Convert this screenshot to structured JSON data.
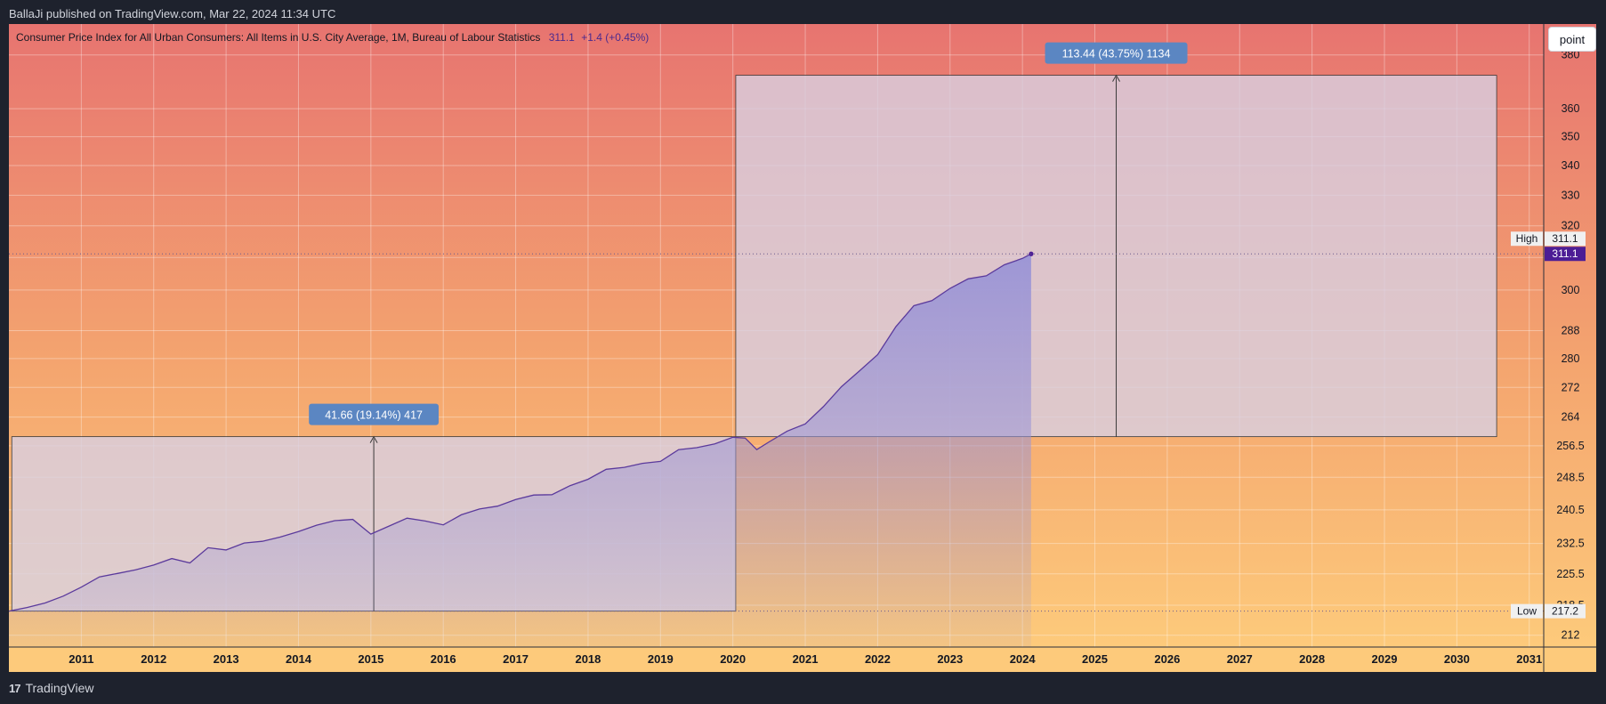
{
  "header": {
    "publisher_line": "BallaJi published on TradingView.com, Mar 22, 2024 11:34 UTC"
  },
  "footer": {
    "brand": "TradingView",
    "logo_glyph": "17"
  },
  "toolbar": {
    "scale_mode_button": "point"
  },
  "legend": {
    "title": "Consumer Price Index for All Urban Consumers: All Items in U.S. City Average, 1M, Bureau of Labour Statistics",
    "last_value": "311.1",
    "change": "+1.4 (+0.45%)"
  },
  "price_labels": {
    "high_label": "High",
    "high_value": "311.1",
    "last_value": "311.1",
    "low_label": "Low",
    "low_value": "217.2"
  },
  "measurements": [
    {
      "label": "41.66 (19.14%) 417",
      "from_date": 2010.04,
      "to_date": 2020.04,
      "low": 217.2,
      "high": 258.86
    },
    {
      "label": "113.44 (43.75%) 1134",
      "from_date": 2020.04,
      "to_date": 2030.55,
      "low": 258.86,
      "high": 372.3
    }
  ],
  "colors": {
    "background_top": "#e77470",
    "background_bottom": "#fdca7b",
    "line": "#5b3a9c",
    "area_fill": "#9a94d6",
    "measure_box": "#d8cfe2",
    "measure_label_bg": "#5b86c2",
    "last_value_bg": "#4c1d95"
  },
  "chart_data": {
    "type": "area",
    "title": "Consumer Price Index for All Urban Consumers: All Items in U.S. City Average, 1M, Bureau of Labour Statistics",
    "x_tick_labels": [
      "2011",
      "2012",
      "2013",
      "2014",
      "2015",
      "2016",
      "2017",
      "2018",
      "2019",
      "2020",
      "2021",
      "2022",
      "2023",
      "2024",
      "2025",
      "2026",
      "2027",
      "2028",
      "2029",
      "2030",
      "2031"
    ],
    "y_tick_labels": [
      "212",
      "218.5",
      "225.5",
      "232.5",
      "240.5",
      "248.5",
      "256.5",
      "264",
      "272",
      "280",
      "288",
      "300",
      "310",
      "320",
      "330",
      "340",
      "350",
      "360",
      "380"
    ],
    "xlim": [
      2010.0,
      2031.2
    ],
    "ylim": [
      209.5,
      392
    ],
    "y_scale": "log",
    "grid": true,
    "series": [
      {
        "name": "",
        "x": [
          2010.0,
          2010.25,
          2010.5,
          2010.75,
          2011.0,
          2011.25,
          2011.5,
          2011.75,
          2012.0,
          2012.25,
          2012.5,
          2012.75,
          2013.0,
          2013.25,
          2013.5,
          2013.75,
          2014.0,
          2014.25,
          2014.5,
          2014.75,
          2015.0,
          2015.25,
          2015.5,
          2015.75,
          2016.0,
          2016.25,
          2016.5,
          2016.75,
          2017.0,
          2017.25,
          2017.5,
          2017.75,
          2018.0,
          2018.25,
          2018.5,
          2018.75,
          2019.0,
          2019.25,
          2019.5,
          2019.75,
          2020.0,
          2020.17,
          2020.33,
          2020.5,
          2020.75,
          2021.0,
          2021.25,
          2021.5,
          2021.75,
          2022.0,
          2022.25,
          2022.5,
          2022.75,
          2023.0,
          2023.25,
          2023.5,
          2023.75,
          2024.0,
          2024.12
        ],
        "values": [
          217.2,
          218.0,
          219.0,
          220.5,
          222.5,
          224.8,
          225.6,
          226.4,
          227.5,
          229.0,
          228.0,
          231.5,
          231.0,
          232.6,
          233.0,
          234.0,
          235.3,
          236.8,
          237.9,
          238.2,
          234.7,
          236.6,
          238.5,
          237.8,
          236.9,
          239.3,
          240.7,
          241.4,
          243.0,
          244.1,
          244.2,
          246.4,
          248.0,
          250.5,
          251.0,
          252.0,
          252.5,
          255.5,
          256.0,
          257.0,
          258.7,
          258.5,
          255.5,
          257.5,
          260.3,
          262.2,
          266.8,
          272.2,
          276.6,
          281.1,
          289.1,
          295.3,
          296.8,
          300.5,
          303.4,
          304.3,
          307.7,
          309.7,
          311.1
        ]
      }
    ]
  }
}
